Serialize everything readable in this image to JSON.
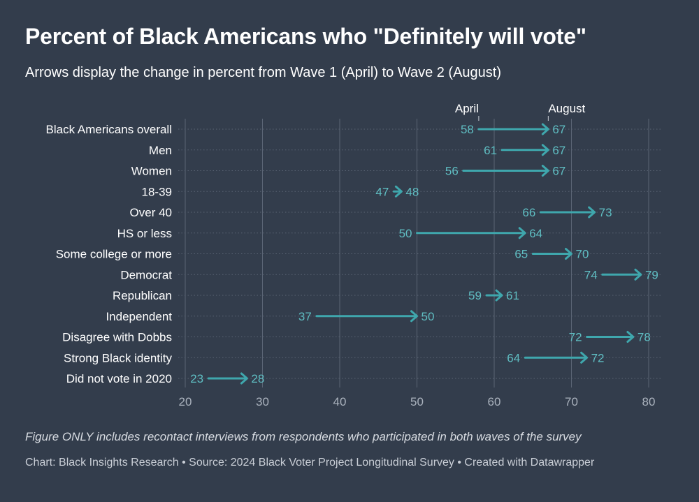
{
  "header": {
    "title": "Percent of Black Americans who \"Definitely will vote\"",
    "subtitle": "Arrows display the change in percent from Wave 1 (April)  to Wave 2 (August)"
  },
  "footer": {
    "note": "Figure ONLY includes recontact interviews from respondents who participated in both waves of the survey",
    "credit": "Chart: Black Insights Research • Source: 2024 Black Voter Project Longitudinal Survey • Created with Datawrapper"
  },
  "colors": {
    "background": "#333d4c",
    "arrow": "#3fa7ad",
    "value_label": "#5fbdc2",
    "grid": "#5b6575",
    "tick_label": "#aab2bd"
  },
  "chart_data": {
    "type": "arrow",
    "title": "Percent of Black Americans who \"Definitely will vote\"",
    "subtitle": "Arrows display the change in percent from Wave 1 (April)  to Wave 2 (August)",
    "series_labels": {
      "start": "April",
      "end": "August"
    },
    "xlim": [
      20,
      80
    ],
    "xticks": [
      20,
      30,
      40,
      50,
      60,
      70,
      80
    ],
    "grid": true,
    "categories": [
      "Black Americans overall",
      "Men",
      "Women",
      "18-39",
      "Over 40",
      "HS or less",
      "Some college or more",
      "Democrat",
      "Republican",
      "Independent",
      "Disagree with Dobbs",
      "Strong Black identity",
      "Did not vote in 2020"
    ],
    "april": [
      58,
      61,
      56,
      47,
      66,
      50,
      65,
      74,
      59,
      37,
      72,
      64,
      23
    ],
    "august": [
      67,
      67,
      67,
      48,
      73,
      64,
      70,
      79,
      61,
      50,
      78,
      72,
      28
    ]
  }
}
